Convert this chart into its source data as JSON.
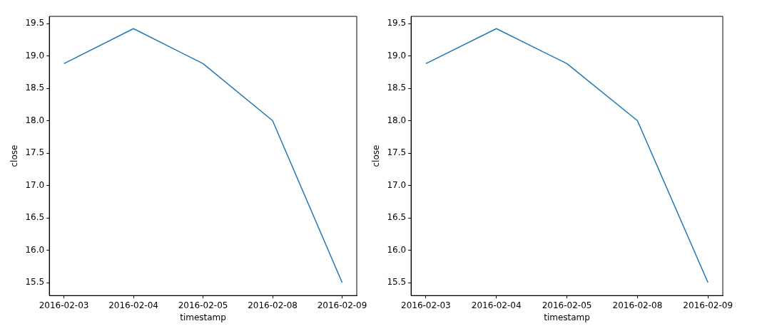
{
  "chart_data": [
    {
      "type": "line",
      "categories": [
        "2016-02-03",
        "2016-02-04",
        "2016-02-05",
        "2016-02-08",
        "2016-02-09"
      ],
      "xlabel": "timestamp",
      "ylabel": "close",
      "series": [
        {
          "color": "#1f77b4",
          "values": [
            18.88,
            19.42,
            18.88,
            18.0,
            15.5
          ]
        }
      ],
      "ylim": [
        15.3,
        19.61
      ],
      "yticks": [
        {
          "value": 15.5,
          "label": "15.5"
        },
        {
          "value": 16,
          "label": "16.0"
        },
        {
          "value": 16.5,
          "label": "16.5"
        },
        {
          "value": 17,
          "label": "17.0"
        },
        {
          "value": 17.5,
          "label": "17.5"
        },
        {
          "value": 18,
          "label": "18.0"
        },
        {
          "value": 18.5,
          "label": "18.5"
        },
        {
          "value": 19,
          "label": "19.0"
        },
        {
          "value": 19.5,
          "label": "19.5"
        }
      ],
      "grid": false,
      "legend": false,
      "marker": "none",
      "line_style": "solid"
    },
    {
      "type": "line",
      "categories": [
        "2016-02-03",
        "2016-02-04",
        "2016-02-05",
        "2016-02-08",
        "2016-02-09"
      ],
      "xlabel": "timestamp",
      "ylabel": "close",
      "series": [
        {
          "color": "#1f77b4",
          "values": [
            18.88,
            19.42,
            18.88,
            18.0,
            15.5
          ]
        }
      ],
      "ylim": [
        15.3,
        19.61
      ],
      "yticks": [
        {
          "value": 15.5,
          "label": "15.5"
        },
        {
          "value": 16,
          "label": "16.0"
        },
        {
          "value": 16.5,
          "label": "16.5"
        },
        {
          "value": 17,
          "label": "17.0"
        },
        {
          "value": 17.5,
          "label": "17.5"
        },
        {
          "value": 18,
          "label": "18.0"
        },
        {
          "value": 18.5,
          "label": "18.5"
        },
        {
          "value": 19,
          "label": "19.0"
        },
        {
          "value": 19.5,
          "label": "19.5"
        }
      ],
      "grid": false,
      "legend": false,
      "marker": "none",
      "line_style": "solid"
    }
  ]
}
